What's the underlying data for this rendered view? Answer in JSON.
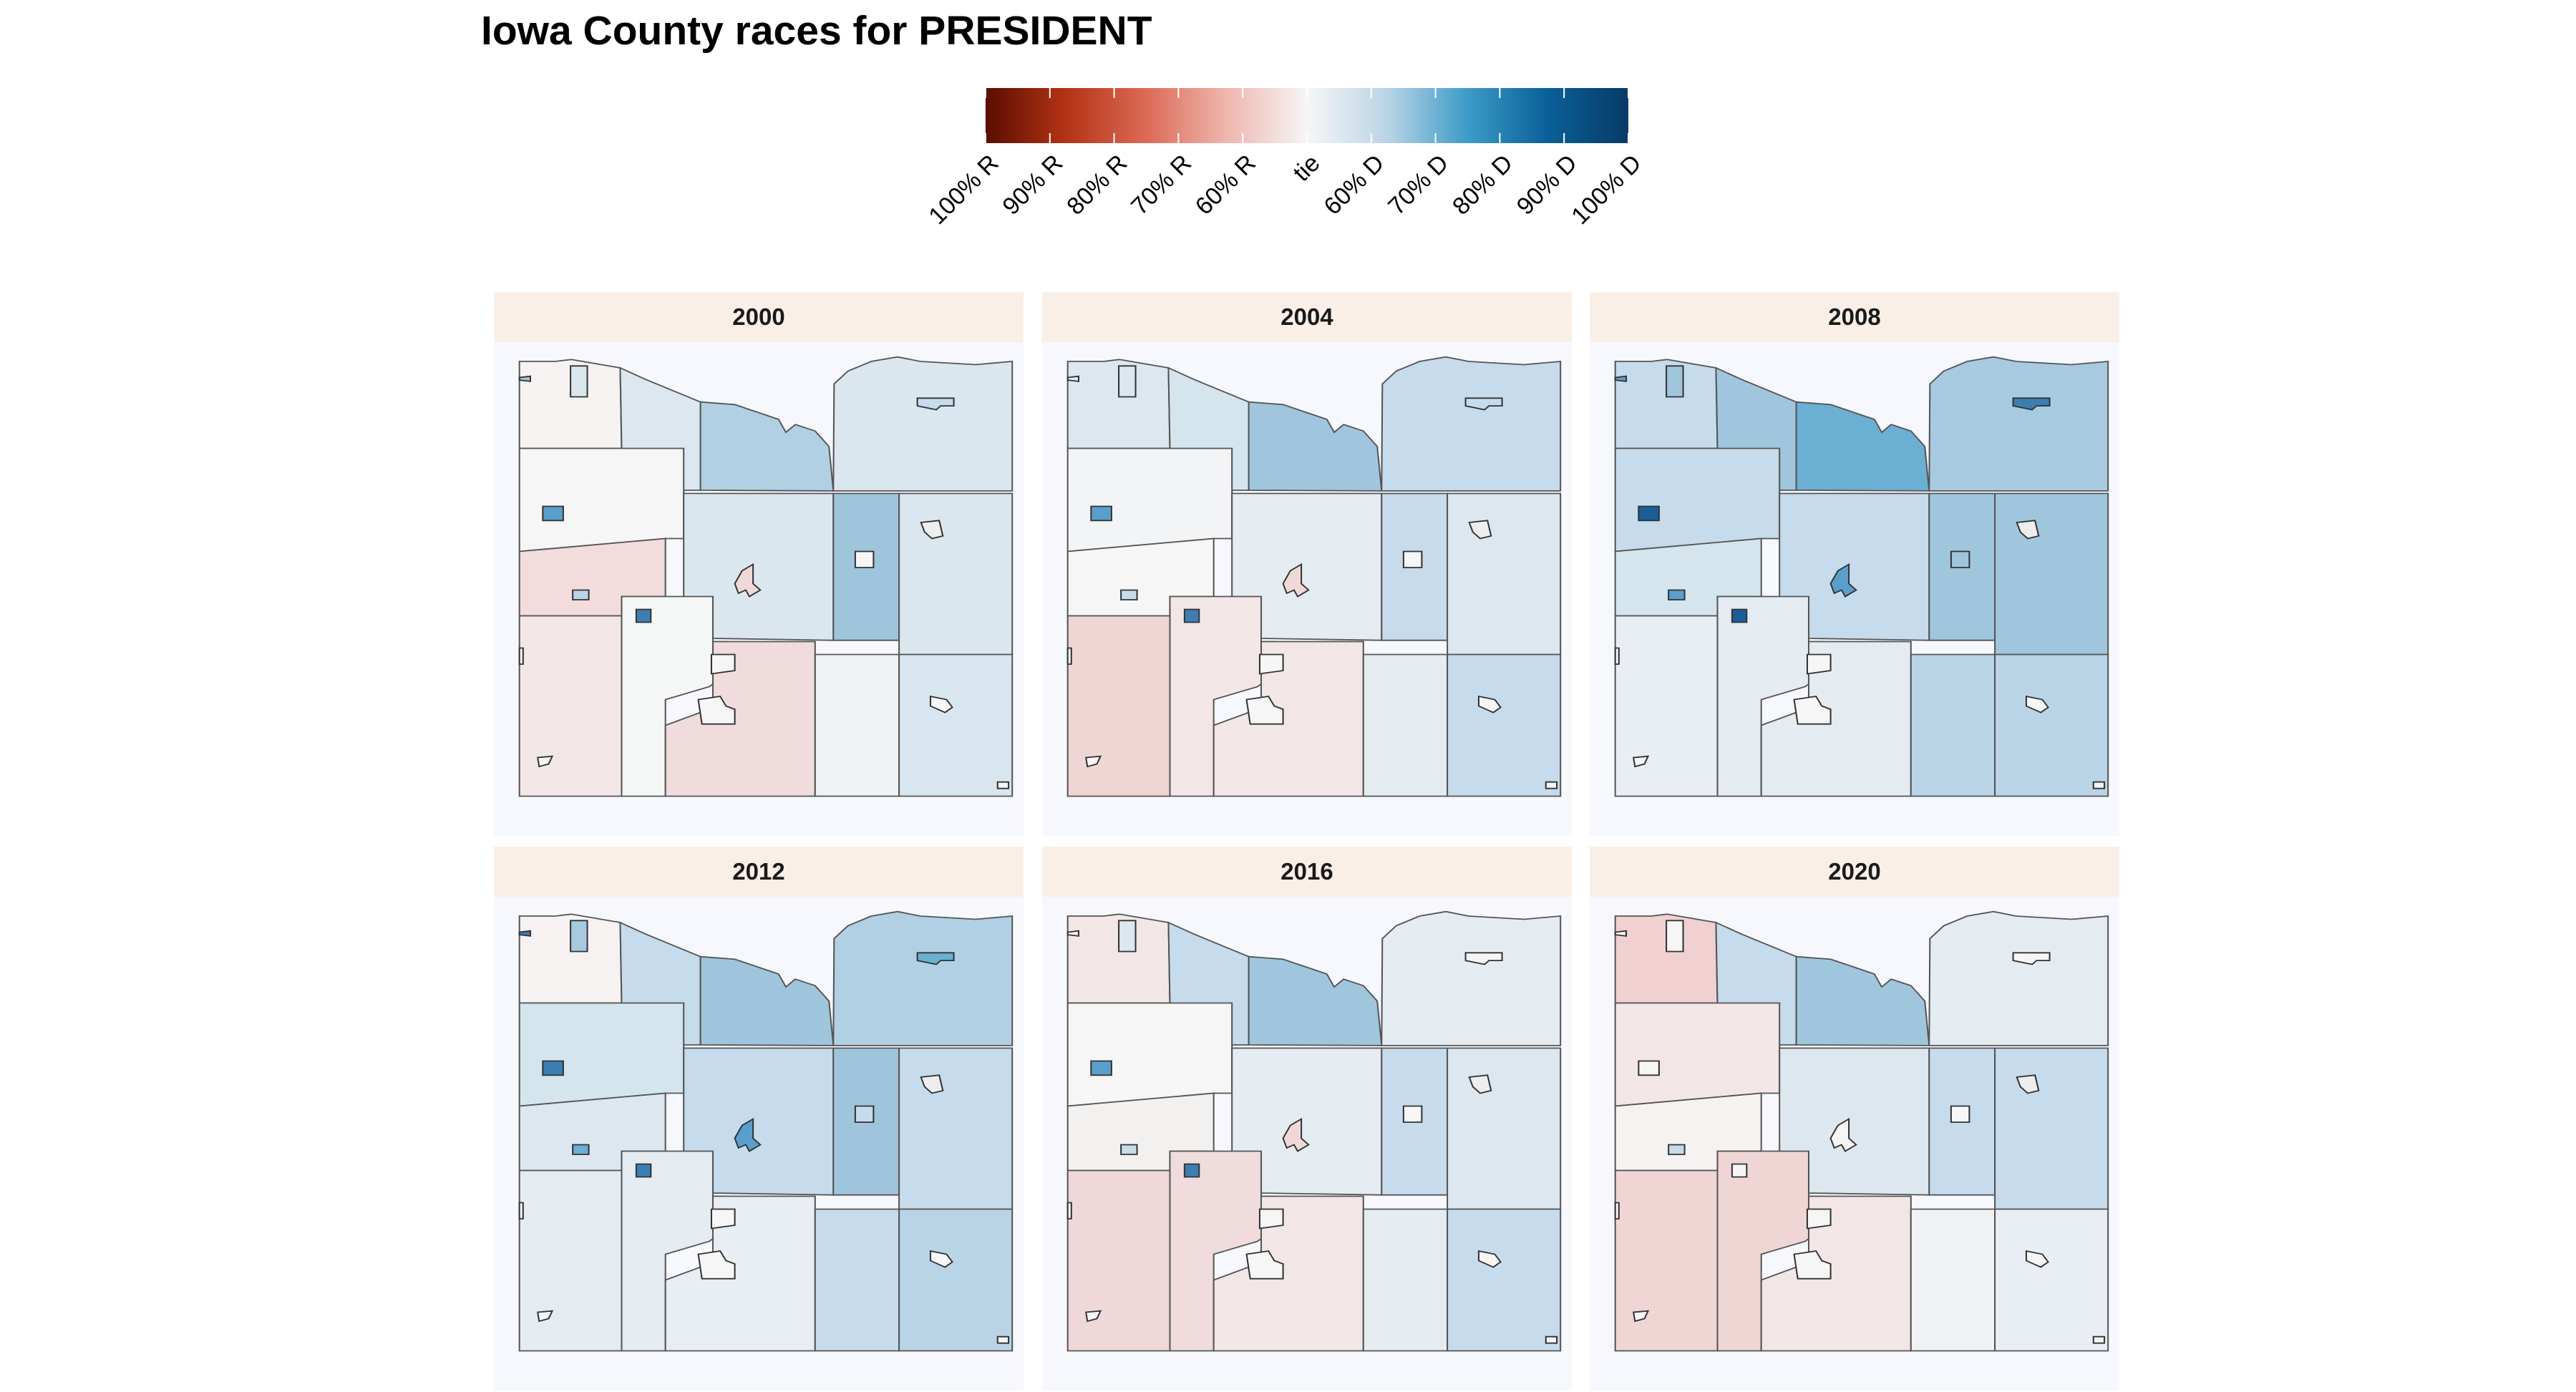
{
  "title": "Iowa County races for PRESIDENT",
  "legend": {
    "colors": [
      "#67001f",
      "#b2182b",
      "#d6604d",
      "#f4a582",
      "#fddbc7",
      "#f7f7f7",
      "#d1e5f0",
      "#92c5de",
      "#4393c3",
      "#2166ac",
      "#053061"
    ],
    "stops": [
      "#5a0d00",
      "#b33315",
      "#dc6a56",
      "#efb6ae",
      "#f6f6f6",
      "#b9d4e6",
      "#3c9bc8",
      "#0a5f98",
      "#073a66"
    ],
    "tick_labels": [
      "100% R",
      "90% R",
      "80% R",
      "70% R",
      "60% R",
      "tie",
      "60% D",
      "70% D",
      "80% D",
      "90% D",
      "100% D"
    ]
  },
  "map_colors": {
    "boundary": "#555555",
    "panel_header_bg": "#faefe6",
    "panel_bg": "#f7f8fd"
  },
  "panels": [
    {
      "year": "2000",
      "fills": [
        "#f6f2f2",
        "#dde7ef",
        "#b1d0e3",
        "#dbe7ef",
        "#f6f6f6",
        "#dbe7ef",
        "#9fc5dd",
        "#dbe7ef",
        "#f2dcdc",
        "#f5f6f6",
        "#f3e6e6",
        "#f0dcdc",
        "#f0f2f4",
        "#d8e6ef",
        "#dbe7ef",
        "#9fc5dd",
        "#c6dbeb",
        "#5a9fcb",
        "#eeeeee",
        "#f6f6f6",
        "#f0d8d8",
        "#b9d4e6",
        "#3c7eb2"
      ]
    },
    {
      "year": "2004",
      "fills": [
        "#dde7ef",
        "#d5e5ee",
        "#a0c6de",
        "#c6dbeb",
        "#f2f4f6",
        "#e4ecf2",
        "#c6dbeb",
        "#dde7ef",
        "#f6f6f6",
        "#f3e6e6",
        "#f0d5d5",
        "#f3e6e6",
        "#e4ecf2",
        "#c6dbeb",
        "#dde7ef",
        "#e4ecf2",
        "#c6dbeb",
        "#5a9fcb",
        "#eeeeee",
        "#f6f6f6",
        "#f0d8d8",
        "#c6dbeb",
        "#3c7eb2"
      ]
    },
    {
      "year": "2008",
      "fills": [
        "#c6dbeb",
        "#a0c6de",
        "#6bafd2",
        "#a8cae0",
        "#c6dbeb",
        "#c6dbeb",
        "#a0c6de",
        "#a0c6de",
        "#d5e5ee",
        "#e4ecf2",
        "#e8eef3",
        "#e4ecf2",
        "#b9d4e6",
        "#b9d4e6",
        "#a0c6de",
        "#5aa0cc",
        "#3c7eb2",
        "#1a5e98",
        "#eeeeee",
        "#9fc5dd",
        "#5a9fcb",
        "#5a9fcb",
        "#1a5e98"
      ]
    },
    {
      "year": "2012",
      "fills": [
        "#f6f2f2",
        "#c6dbeb",
        "#9fc5dd",
        "#b1d0e3",
        "#d5e5ee",
        "#c6dbeb",
        "#9fc5dd",
        "#c6dbeb",
        "#dde7ef",
        "#e4ecf2",
        "#e4ecf2",
        "#e8eef3",
        "#c6dbeb",
        "#b9d4e6",
        "#a8cae0",
        "#3c7eb2",
        "#6bafd2",
        "#3c7eb2",
        "#eeeeee",
        "#c6dbeb",
        "#5a9fcb",
        "#6bafd2",
        "#3c7eb2"
      ]
    },
    {
      "year": "2016",
      "fills": [
        "#f3e6e6",
        "#c6dbeb",
        "#a0c6de",
        "#e4ecf2",
        "#f6f6f6",
        "#e4ecf2",
        "#c6dbeb",
        "#dde7ef",
        "#f3f0f0",
        "#f0dcdc",
        "#f0d8d8",
        "#f3e6e6",
        "#e4ecf2",
        "#c6dbeb",
        "#dde7ef",
        "#f6f6f6",
        "#f6f6f6",
        "#5a9fcb",
        "#eeeeee",
        "#f6f6f6",
        "#f0d8d8",
        "#c6dbeb",
        "#3c7eb2"
      ]
    },
    {
      "year": "2020",
      "fills": [
        "#f0d0d0",
        "#c6dbeb",
        "#a0c6de",
        "#e4ecf2",
        "#f3e6e6",
        "#dde7ef",
        "#c6dbeb",
        "#c6dbeb",
        "#f6f2f2",
        "#f0d5d5",
        "#f0d5d5",
        "#f3e6e6",
        "#f0f2f4",
        "#e8eef3",
        "#f6f6f6",
        "#f6f6f6",
        "#f6f6f6",
        "#f6f6f6",
        "#eeeeee",
        "#f6f6f6",
        "#f6f6f6",
        "#c6dbeb",
        "#f6f6f6"
      ]
    }
  ]
}
